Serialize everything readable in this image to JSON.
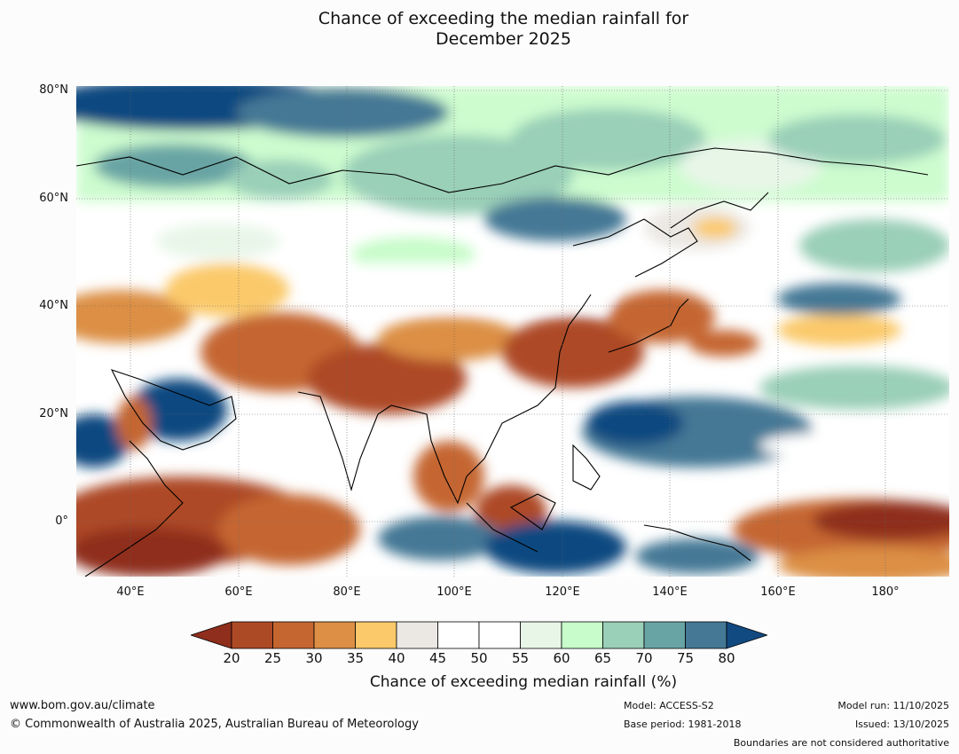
{
  "title_line1": "Chance of exceeding the median rainfall for",
  "title_line2": "December 2025",
  "lat_labels": [
    "80°N",
    "60°N",
    "40°N",
    "20°N",
    "0°"
  ],
  "lon_labels": [
    "40°E",
    "60°E",
    "80°E",
    "100°E",
    "120°E",
    "140°E",
    "160°E",
    "180°"
  ],
  "colorbar": {
    "ticks": [
      "20",
      "25",
      "30",
      "35",
      "40",
      "45",
      "50",
      "55",
      "60",
      "65",
      "70",
      "75",
      "80"
    ],
    "colors": [
      "#8f2e1c",
      "#ad4a26",
      "#c56630",
      "#dc8f45",
      "#fbc96a",
      "#ebe8e4",
      "#ffffff",
      "#ffffff",
      "#e8f6e8",
      "#c8fcca",
      "#9acfb8",
      "#69a4a4",
      "#447895",
      "#114a80"
    ],
    "label": "Chance of exceeding median rainfall (%)"
  },
  "footer": {
    "website": "www.bom.gov.au/climate",
    "copyright": "© Commonwealth of Australia 2025, Australian Bureau of Meteorology",
    "model": "Model: ACCESS-S2",
    "base_period": "Base period: 1981-2018",
    "model_run": "Model run: 11/10/2025",
    "issued": "Issued: 13/10/2025",
    "disclaimer": "Boundaries are not considered authoritative"
  }
}
